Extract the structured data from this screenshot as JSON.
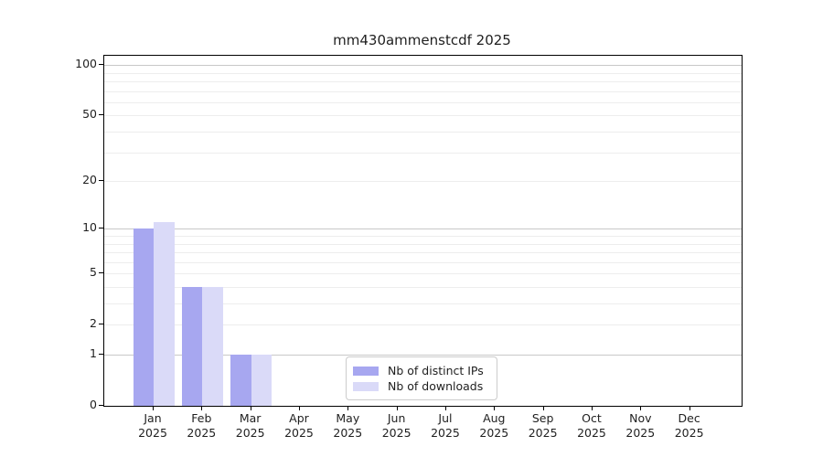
{
  "chart_data": {
    "type": "bar",
    "title": "mm430ammenstcdf 2025",
    "categories": [
      {
        "m": "Jan",
        "y": "2025"
      },
      {
        "m": "Feb",
        "y": "2025"
      },
      {
        "m": "Mar",
        "y": "2025"
      },
      {
        "m": "Apr",
        "y": "2025"
      },
      {
        "m": "May",
        "y": "2025"
      },
      {
        "m": "Jun",
        "y": "2025"
      },
      {
        "m": "Jul",
        "y": "2025"
      },
      {
        "m": "Aug",
        "y": "2025"
      },
      {
        "m": "Sep",
        "y": "2025"
      },
      {
        "m": "Oct",
        "y": "2025"
      },
      {
        "m": "Nov",
        "y": "2025"
      },
      {
        "m": "Dec",
        "y": "2025"
      }
    ],
    "series": [
      {
        "name": "Nb of distinct IPs",
        "color": "#a7a7f0",
        "values": [
          10,
          4,
          1,
          0,
          0,
          0,
          0,
          0,
          0,
          0,
          0,
          0
        ]
      },
      {
        "name": "Nb of downloads",
        "color": "#dadaf8",
        "values": [
          11,
          4,
          1,
          0,
          0,
          0,
          0,
          0,
          0,
          0,
          0,
          0
        ]
      }
    ],
    "y_axis": {
      "scale": "log10(1+x)",
      "major_ticks": [
        0,
        1,
        2,
        5,
        10,
        20,
        50,
        100
      ],
      "decade_gridlines": [
        1,
        10,
        100
      ],
      "light_gridlines": [
        2,
        3,
        4,
        5,
        6,
        7,
        8,
        9,
        20,
        30,
        40,
        50,
        60,
        70,
        80,
        90,
        100
      ],
      "ymax_effective": 113
    },
    "legend": {
      "position": "lower center",
      "entries": [
        "Nb of distinct IPs",
        "Nb of downloads"
      ]
    },
    "colors": {
      "grid_decade": "#c8c8c8",
      "grid_minor": "#ededed",
      "spine": "#000000",
      "text": "#1f1f1f",
      "background": "#ffffff"
    }
  }
}
